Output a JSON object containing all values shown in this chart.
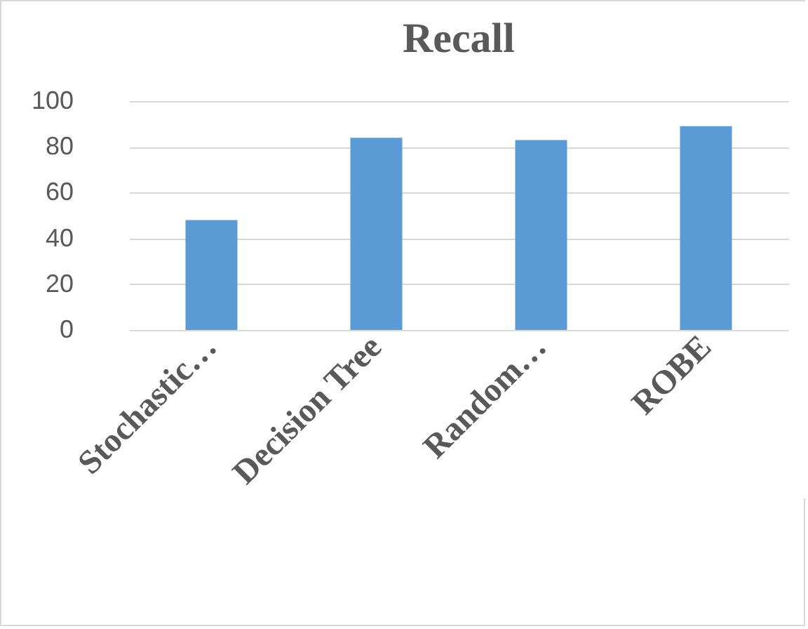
{
  "chart_data": {
    "type": "bar",
    "title": "Recall",
    "categories": [
      "Stochastic…",
      "Decision Tree",
      "Random…",
      "ROBE"
    ],
    "values": [
      48,
      84,
      83,
      89
    ],
    "color": "#5b9bd5",
    "ylim": [
      0,
      100
    ],
    "yticks": [
      0,
      20,
      40,
      60,
      80,
      100
    ],
    "grid": true
  }
}
